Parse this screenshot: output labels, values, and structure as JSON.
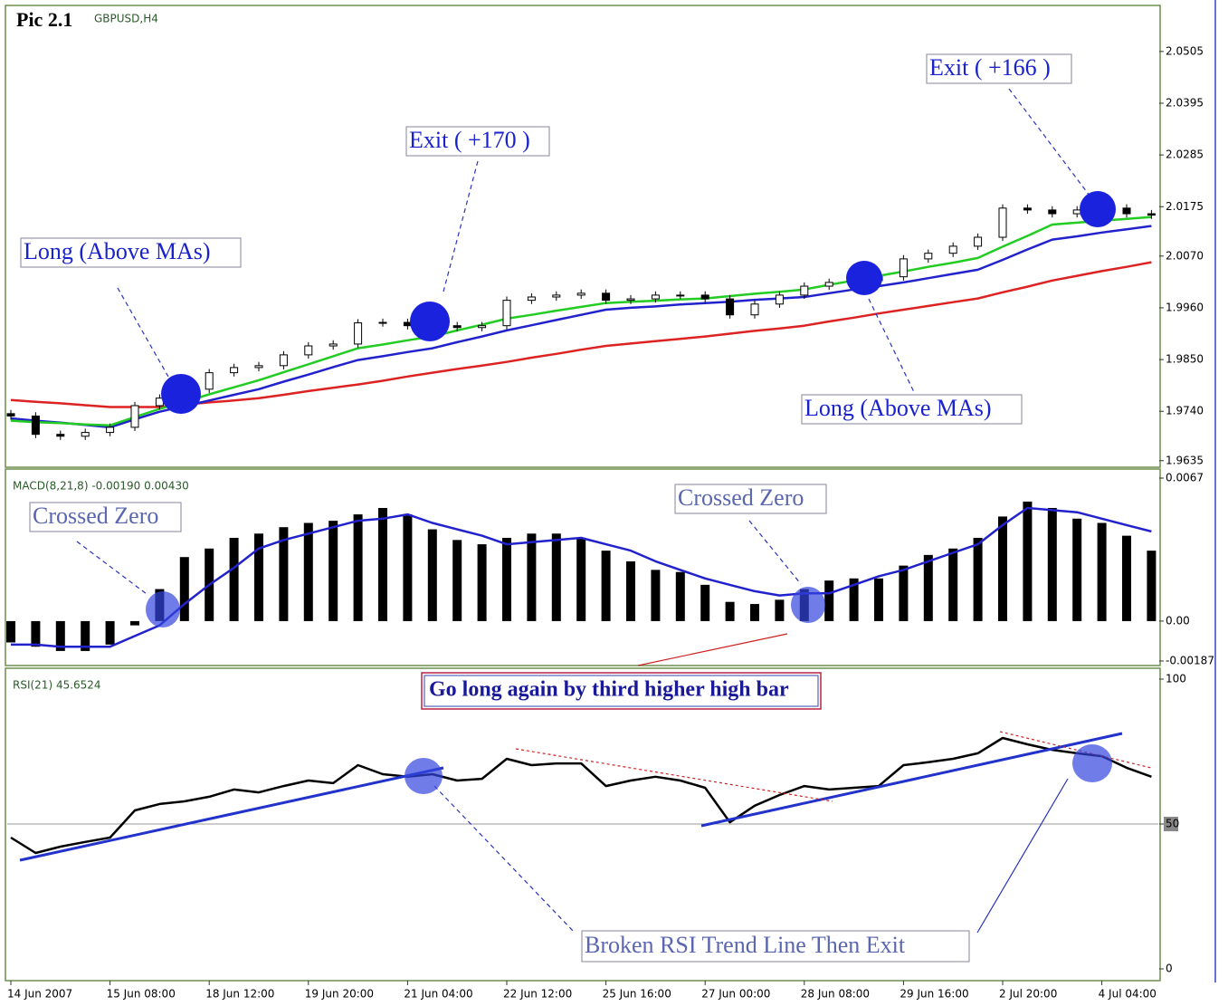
{
  "title": "Pic 2.1",
  "chart_data": [
    {
      "type": "candlestick",
      "title": "GBPUSD,H4",
      "ylim": [
        1.9623,
        2.0599
      ],
      "yticks": [
        2.0505,
        2.0395,
        2.0285,
        2.0175,
        {
          "value": 2.007,
          "label": "2.0070"
        },
        {
          "value": 1.996,
          "label": "1.9960"
        },
        {
          "value": 1.985,
          "label": "1.9850"
        },
        {
          "value": 1.974,
          "label": "1.9740"
        },
        1.9635
      ],
      "open": [
        1.9735,
        1.973,
        1.9691,
        1.9687,
        1.9695,
        1.9706,
        1.9752,
        1.9768,
        1.9787,
        1.9822,
        1.9833,
        1.9837,
        1.986,
        1.9879,
        1.9883,
        1.9928,
        1.9929,
        1.9922,
        1.9922,
        1.9918,
        1.9922,
        1.9976,
        1.9983,
        1.9987,
        1.9991,
        1.9976,
        1.9979,
        1.9987,
        1.9987,
        1.9979,
        1.9945,
        1.9968,
        1.9987,
        2.0006,
        2.0014,
        2.0018,
        2.0026,
        2.0064,
        2.0076,
        2.0091,
        2.011,
        2.0172,
        2.0168,
        2.016,
        2.0168,
        2.0172,
        2.016
      ],
      "high": [
        1.9743,
        1.9738,
        1.9699,
        1.9703,
        1.9714,
        1.976,
        1.9776,
        1.9795,
        1.983,
        1.9841,
        1.9845,
        1.9868,
        1.9887,
        1.9891,
        1.9936,
        1.9937,
        1.9937,
        1.993,
        1.993,
        1.993,
        1.9984,
        1.9991,
        1.9995,
        1.9999,
        1.9999,
        1.9987,
        1.9995,
        1.9995,
        1.9995,
        1.9987,
        1.9976,
        1.9995,
        2.0014,
        2.0022,
        2.0026,
        2.0034,
        2.0072,
        2.0084,
        2.0099,
        2.0118,
        2.018,
        2.018,
        2.0176,
        2.0176,
        2.018,
        2.018,
        2.0168
      ],
      "low": [
        1.9722,
        1.9683,
        1.9679,
        1.9679,
        1.9687,
        1.9698,
        1.9744,
        1.976,
        1.9779,
        1.9814,
        1.9825,
        1.9829,
        1.9852,
        1.9871,
        1.9875,
        1.992,
        1.9914,
        1.9914,
        1.991,
        1.991,
        1.9914,
        1.9968,
        1.9975,
        1.9979,
        1.9968,
        1.9968,
        1.9971,
        1.9979,
        1.9971,
        1.9937,
        1.9937,
        1.996,
        1.9979,
        1.9998,
        2.0006,
        2.001,
        2.0018,
        2.0056,
        2.0068,
        2.0083,
        2.0102,
        2.016,
        2.0152,
        2.0152,
        2.016,
        2.0152,
        2.0149
      ],
      "close": [
        1.973,
        1.9691,
        1.9687,
        1.9695,
        1.9706,
        1.9752,
        1.9768,
        1.9787,
        1.9822,
        1.9833,
        1.9837,
        1.986,
        1.9879,
        1.9883,
        1.9928,
        1.9929,
        1.9922,
        1.9922,
        1.9918,
        1.9922,
        1.9976,
        1.9983,
        1.9987,
        1.9991,
        1.9976,
        1.9979,
        1.9987,
        1.9987,
        1.9979,
        1.9945,
        1.9968,
        1.9987,
        2.0006,
        2.0014,
        2.0018,
        2.0026,
        2.0064,
        2.0076,
        2.0091,
        2.011,
        2.0172,
        2.0168,
        2.016,
        2.0168,
        2.0172,
        2.016,
        2.0157
      ],
      "series": [
        {
          "color": "#dd2222",
          "values": [
            1.9764,
            1.976,
            1.9757,
            1.9753,
            1.9749,
            1.9749,
            1.9749,
            1.9754,
            1.9759,
            1.9763,
            1.9768,
            1.9775,
            1.9783,
            1.979,
            1.9797,
            1.9805,
            1.9814,
            1.9822,
            1.983,
            1.9837,
            1.9845,
            1.9854,
            1.9862,
            1.9871,
            1.9879,
            1.9884,
            1.9889,
            1.9894,
            1.9899,
            1.9905,
            1.9911,
            1.9916,
            1.9922,
            1.9931,
            1.9939,
            1.9948,
            1.9956,
            1.9964,
            1.9972,
            1.998,
            1.9993,
            2.0005,
            2.0018,
            2.0028,
            2.0038,
            2.0047,
            2.0057
          ]
        },
        {
          "color": "#2222cc",
          "values": [
            1.9725,
            1.972,
            1.9716,
            1.9711,
            1.9706,
            1.9723,
            1.9739,
            1.9751,
            1.9763,
            1.9775,
            1.9787,
            1.9803,
            1.9818,
            1.9834,
            1.9849,
            1.9857,
            1.9866,
            1.9874,
            1.9887,
            1.9899,
            1.9912,
            1.9923,
            1.9934,
            1.9945,
            1.9956,
            1.996,
            1.9963,
            1.9967,
            1.997,
            1.9973,
            1.9977,
            1.998,
            1.9983,
            1.9991,
            1.9999,
            2.0006,
            2.0014,
            2.0023,
            2.0032,
            2.0041,
            2.0062,
            2.0084,
            2.0105,
            2.0112,
            2.012,
            2.0127,
            2.0134
          ]
        },
        {
          "color": "#22cc22",
          "values": [
            1.972,
            1.9717,
            1.9715,
            1.9712,
            1.971,
            1.9728,
            1.9745,
            1.976,
            1.9776,
            1.9791,
            1.9806,
            1.9823,
            1.984,
            1.9857,
            1.9874,
            1.9882,
            1.9891,
            1.9899,
            1.9912,
            1.9924,
            1.9937,
            1.9945,
            1.9954,
            1.9962,
            1.997,
            1.9973,
            1.9975,
            1.9978,
            1.998,
            1.9985,
            1.999,
            1.9994,
            1.9999,
            2.0009,
            2.0018,
            2.0028,
            2.0037,
            2.0047,
            2.0056,
            2.0066,
            2.009,
            2.0113,
            2.0137,
            2.0141,
            2.0145,
            2.0149,
            2.0153
          ]
        }
      ],
      "annotations": [
        "Long (Above MAs)",
        "Exit ( +170 )",
        "Exit ( +166 )",
        "Long (Above MAs)"
      ]
    },
    {
      "type": "macd",
      "title": "MACD(8,21,8) -0.00190 0.00430",
      "ylim": [
        -0.00187,
        0.0067
      ],
      "yticks": [
        0.0067,
        {
          "value": 0,
          "label": "0.00"
        },
        -0.00187
      ],
      "color": "#000000",
      "values": [
        -0.001,
        -0.0012,
        -0.0014,
        -0.0014,
        -0.0011,
        -0.0002,
        0.0015,
        0.003,
        0.0034,
        0.0039,
        0.0041,
        0.0044,
        0.0046,
        0.0047,
        0.005,
        0.0053,
        0.005,
        0.0043,
        0.0038,
        0.0036,
        0.0039,
        0.0041,
        0.0041,
        0.0039,
        0.0033,
        0.0028,
        0.0024,
        0.0023,
        0.0017,
        0.0009,
        0.0008,
        0.001,
        0.0015,
        0.0019,
        0.002,
        0.002,
        0.0026,
        0.0031,
        0.0034,
        0.0039,
        0.0049,
        0.0056,
        0.0053,
        0.0048,
        0.0046,
        0.004,
        0.0033
      ],
      "series": [
        {
          "color": "#2222cc",
          "values": [
            -0.0011,
            -0.0011,
            -0.0012,
            -0.0012,
            -0.0012,
            -0.0007,
            -0.0002,
            0.0008,
            0.0017,
            0.0025,
            0.0034,
            0.0038,
            0.0041,
            0.0044,
            0.0047,
            0.0048,
            0.005,
            0.0046,
            0.0043,
            0.004,
            0.0036,
            0.0037,
            0.0038,
            0.0039,
            0.0036,
            0.0033,
            0.0028,
            0.0024,
            0.002,
            0.0017,
            0.0014,
            0.0012,
            0.0013,
            0.0013,
            0.0017,
            0.0021,
            0.0024,
            0.0028,
            0.0032,
            0.0036,
            0.0045,
            0.0053,
            0.0052,
            0.0051,
            0.0048,
            0.0045,
            0.0042
          ]
        }
      ],
      "annotations": [
        "Crossed Zero",
        "Crossed Zero"
      ]
    },
    {
      "type": "line",
      "title": "RSI(21) 45.6524",
      "ylim": [
        0,
        100
      ],
      "yticks": [
        100,
        50,
        0
      ],
      "levels": [
        50
      ],
      "categories": [
        "14 Jun 2007",
        null,
        null,
        null,
        "15 Jun 08:00",
        null,
        null,
        null,
        "18 Jun 12:00",
        null,
        null,
        null,
        "19 Jun 20:00",
        null,
        null,
        null,
        "21 Jun 04:00",
        null,
        null,
        null,
        "22 Jun 12:00",
        null,
        null,
        null,
        "25 Jun 16:00",
        null,
        null,
        null,
        "27 Jun 00:00",
        null,
        null,
        null,
        "28 Jun 08:00",
        null,
        null,
        null,
        "29 Jun 16:00",
        null,
        null,
        null,
        "2 Jul 20:00",
        null,
        null,
        null,
        "4 Jul 04:00",
        null,
        null
      ],
      "color": "#000000",
      "values": [
        45.3,
        40.0,
        42.2,
        43.8,
        45.3,
        54.7,
        56.9,
        57.8,
        59.4,
        61.9,
        60.9,
        63.1,
        65.0,
        64.1,
        70.3,
        67.2,
        66.3,
        67.2,
        65.0,
        65.6,
        72.5,
        70.3,
        70.9,
        70.9,
        63.1,
        65.0,
        66.3,
        65.0,
        62.5,
        50.6,
        56.3,
        60.0,
        63.1,
        61.9,
        62.5,
        63.1,
        70.3,
        71.3,
        72.5,
        74.4,
        79.7,
        77.5,
        75.6,
        74.4,
        73.4,
        69.4,
        66.3
      ],
      "annotations": [
        "Go long again by third higher high bar",
        "Broken RSI Trend Line Then Exit"
      ]
    }
  ]
}
